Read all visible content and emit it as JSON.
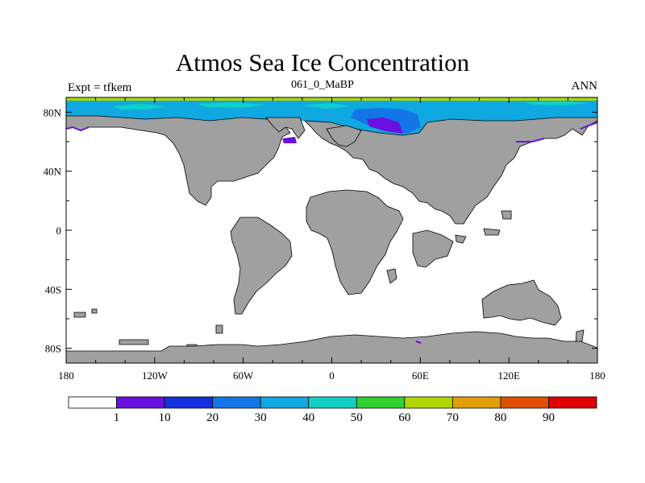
{
  "title": "Atmos Sea Ice Concentration",
  "left_string": "Expt = tfkem",
  "center_string": "061_0_MaBP",
  "right_string": "ANN",
  "map": {
    "lon_range": [
      -180,
      180
    ],
    "lat_range": [
      -90,
      90
    ],
    "x_ticks": [
      {
        "lon": -180,
        "label": "180"
      },
      {
        "lon": -120,
        "label": "120W"
      },
      {
        "lon": -60,
        "label": "60W"
      },
      {
        "lon": 0,
        "label": "0"
      },
      {
        "lon": 60,
        "label": "60E"
      },
      {
        "lon": 120,
        "label": "120E"
      },
      {
        "lon": 180,
        "label": "180"
      }
    ],
    "y_ticks": [
      {
        "lat": 80,
        "label": "80N"
      },
      {
        "lat": 40,
        "label": "40N"
      },
      {
        "lat": 0,
        "label": "0"
      },
      {
        "lat": -40,
        "label": "40S"
      },
      {
        "lat": -80,
        "label": "80S"
      }
    ],
    "land_color": "#a0a0a0",
    "ocean_color": "#ffffff"
  },
  "colorbar": {
    "colors": [
      "#ffffff",
      "#6a10e0",
      "#1530e0",
      "#1475e8",
      "#10a8e0",
      "#10d0c8",
      "#30d030",
      "#b0d800",
      "#e0a000",
      "#e05000",
      "#e00000"
    ],
    "labels": [
      "1",
      "10",
      "20",
      "30",
      "40",
      "50",
      "60",
      "70",
      "80",
      "90"
    ]
  }
}
